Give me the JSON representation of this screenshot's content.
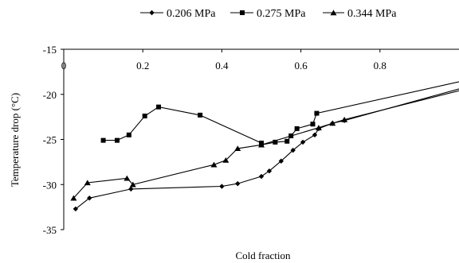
{
  "chart_data": {
    "type": "line",
    "title": "",
    "xlabel": "Cold fraction",
    "ylabel": "Temperature drop (°C)",
    "xlim": [
      0,
      1
    ],
    "ylim": [
      -35,
      -15
    ],
    "x_ticks": [
      "0",
      "0.2",
      "0.4",
      "0.6",
      "0.8"
    ],
    "y_ticks": [
      "-15",
      "-20",
      "-25",
      "-30",
      "-35"
    ],
    "legend_position": "top",
    "grid": false,
    "series": [
      {
        "name": "0.206 MPa",
        "marker": "diamond",
        "x": [
          0.03,
          0.065,
          0.17,
          0.4,
          0.44,
          0.5,
          0.52,
          0.55,
          0.58,
          0.605,
          0.635,
          0.645,
          0.68,
          0.71,
          1.0
        ],
        "y": [
          -32.7,
          -31.5,
          -30.5,
          -30.2,
          -29.9,
          -29.1,
          -28.5,
          -27.4,
          -26.2,
          -25.3,
          -24.5,
          -23.8,
          -23.2,
          -22.9,
          -19.4
        ]
      },
      {
        "name": "0.275 MPa",
        "marker": "square",
        "x": [
          0.1,
          0.135,
          0.165,
          0.205,
          0.24,
          0.345,
          0.5,
          0.5,
          0.535,
          0.565,
          0.575,
          0.59,
          0.63,
          0.64,
          1.0
        ],
        "y": [
          -25.1,
          -25.1,
          -24.5,
          -22.4,
          -21.4,
          -22.3,
          -25.4,
          -25.6,
          -25.3,
          -25.2,
          -24.6,
          -23.8,
          -23.3,
          -22.1,
          -18.6
        ]
      },
      {
        "name": "0.344 MPa",
        "marker": "triangle",
        "x": [
          0.025,
          0.06,
          0.16,
          0.175,
          0.38,
          0.41,
          0.44,
          0.5,
          0.645,
          0.68,
          0.71,
          1.0
        ],
        "y": [
          -31.5,
          -29.8,
          -29.3,
          -30.0,
          -27.8,
          -27.3,
          -26.0,
          -25.6,
          -23.7,
          -23.2,
          -22.8,
          -19.6
        ]
      }
    ]
  }
}
